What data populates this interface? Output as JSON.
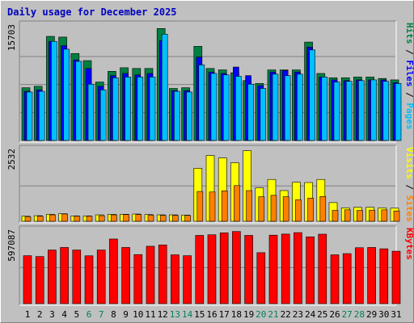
{
  "chart_data": {
    "type": "bar",
    "title": "Daily usage for December 2025",
    "categories": [
      "1",
      "2",
      "3",
      "4",
      "5",
      "6",
      "7",
      "8",
      "9",
      "10",
      "11",
      "12",
      "13",
      "14",
      "15",
      "16",
      "17",
      "18",
      "19",
      "20",
      "21",
      "22",
      "23",
      "24",
      "25",
      "26",
      "27",
      "28",
      "29",
      "30",
      "31"
    ],
    "weekend_days": [
      "6",
      "7",
      "13",
      "14",
      "20",
      "21",
      "27",
      "28"
    ],
    "panels": [
      {
        "name": "hits",
        "ymax_label": "15703",
        "ymax": 15703,
        "right_labels": [
          "Pages",
          "Files",
          "Hits"
        ],
        "series": [
          {
            "name": "Hits",
            "color": "#008040",
            "values": [
              7400,
              7600,
              14600,
              14500,
              12200,
              11200,
              8200,
              9700,
              10200,
              10100,
              10100,
              15703,
              7300,
              7400,
              13200,
              10100,
              9900,
              9500,
              8400,
              8000,
              9900,
              9900,
              9900,
              13800,
              9400,
              8800,
              8800,
              8900,
              8900,
              8700,
              8500
            ]
          },
          {
            "name": "Files",
            "color": "#0000ff",
            "values": [
              6900,
              7100,
              13900,
              13300,
              11300,
              10100,
              7600,
              9100,
              9400,
              9200,
              9400,
              14000,
              7000,
              7000,
              11700,
              9600,
              9400,
              10300,
              9100,
              7700,
              9600,
              9800,
              9600,
              13100,
              8900,
              8500,
              8400,
              8500,
              8500,
              8500,
              8100
            ]
          },
          {
            "name": "Pages",
            "color": "#00c0ff",
            "values": [
              6800,
              6900,
              13900,
              12800,
              11100,
              7900,
              7100,
              8800,
              8900,
              8900,
              8900,
              14900,
              6900,
              6800,
              10600,
              9400,
              9200,
              9000,
              7900,
              7300,
              9300,
              9100,
              9300,
              12700,
              8900,
              8200,
              8300,
              8400,
              8500,
              8300,
              8000
            ]
          }
        ]
      },
      {
        "name": "visits",
        "ymax_label": "2532",
        "ymax": 2532,
        "right_labels": [
          "Sites",
          "Visits"
        ],
        "series": [
          {
            "name": "Visits",
            "color": "#ffff00",
            "values": [
              180,
              200,
              250,
              270,
              190,
              190,
              230,
              250,
              250,
              260,
              240,
              230,
              230,
              220,
              1900,
              2360,
              2270,
              2100,
              2532,
              1200,
              1500,
              1100,
              1400,
              1390,
              1500,
              670,
              480,
              500,
              500,
              480,
              470
            ]
          },
          {
            "name": "Sites",
            "color": "#ff8000",
            "values": [
              160,
              180,
              230,
              260,
              180,
              180,
              200,
              230,
              240,
              240,
              220,
              210,
              210,
              210,
              1070,
              1050,
              1090,
              1280,
              1100,
              880,
              930,
              880,
              770,
              830,
              890,
              390,
              410,
              390,
              400,
              410,
              370
            ]
          }
        ]
      },
      {
        "name": "kbytes",
        "ymax_label": "597087",
        "ymax": 597087,
        "right_labels": [
          "KBytes"
        ],
        "series": [
          {
            "name": "KBytes",
            "color": "#ff0000",
            "values": [
              397000,
              390000,
              444000,
              465000,
              444000,
              396000,
              444000,
              535000,
              465000,
              406000,
              475000,
              486000,
              404000,
              397000,
              565000,
              570000,
              586000,
              597087,
              565000,
              422000,
              567000,
              576000,
              588000,
              553000,
              575000,
              404000,
              414000,
              463000,
              465000,
              454000,
              434000
            ]
          }
        ]
      }
    ],
    "label_colors": {
      "Pages": "#00c0ff",
      "Files": "#0000ff",
      "Hits": "#008040",
      "Sites": "#ff8000",
      "Visits": "#ffff00",
      "KBytes": "#ff0000",
      "weekday": "#000000",
      "weekend": "#00805c"
    }
  }
}
